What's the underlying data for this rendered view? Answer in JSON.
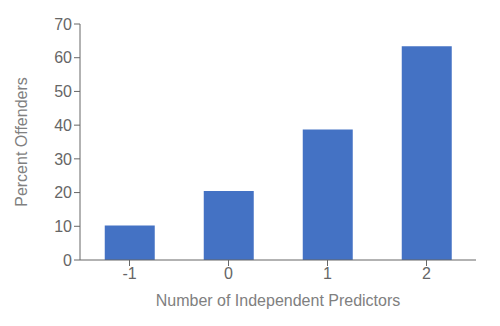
{
  "chart_data": {
    "type": "bar",
    "categories": [
      "-1",
      "0",
      "1",
      "2"
    ],
    "values": [
      10.2,
      20.5,
      38.7,
      63.4
    ],
    "color": "#4472C4",
    "xlabel": "Number of Independent Predictors",
    "ylabel": "Percent Offenders",
    "ylim": [
      0,
      70
    ],
    "yticks": [
      0,
      10,
      20,
      30,
      40,
      50,
      60,
      70
    ],
    "grid": false
  }
}
